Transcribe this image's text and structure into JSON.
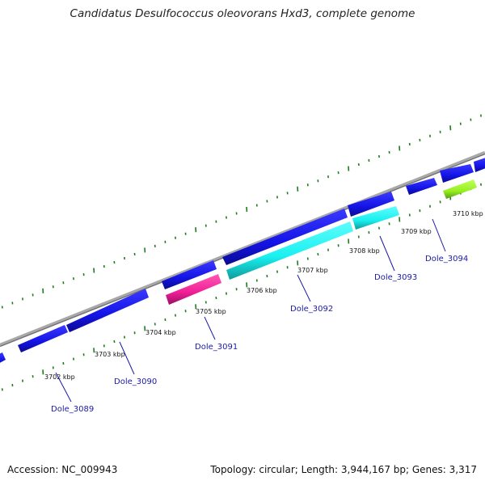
{
  "title": "Candidatus Desulfococcus oleovorans Hxd3, complete genome",
  "footer": {
    "accession": "Accession: NC_009943",
    "summary": "Topology: circular; Length: 3,944,167 bp; Genes: 3,317"
  },
  "colors": {
    "backbone": "#8c8c8c",
    "tick": "#1e7d1e",
    "gene_forward": "#1414e6",
    "gene_cyan": "#19f0f0",
    "gene_magenta": "#f01e96",
    "gene_green": "#96f01e",
    "label": "#1a1aa6"
  },
  "ticks": [
    {
      "label": "3702 kbp"
    },
    {
      "label": "3703 kbp"
    },
    {
      "label": "3704 kbp"
    },
    {
      "label": "3705 kbp"
    },
    {
      "label": "3706 kbp"
    },
    {
      "label": "3707 kbp"
    },
    {
      "label": "3708 kbp"
    },
    {
      "label": "3709 kbp"
    },
    {
      "label": "3710 kbp"
    }
  ],
  "gene_labels": [
    {
      "name": "Dole_3089"
    },
    {
      "name": "Dole_3090"
    },
    {
      "name": "Dole_3091"
    },
    {
      "name": "Dole_3092"
    },
    {
      "name": "Dole_3093"
    },
    {
      "name": "Dole_3094"
    }
  ]
}
